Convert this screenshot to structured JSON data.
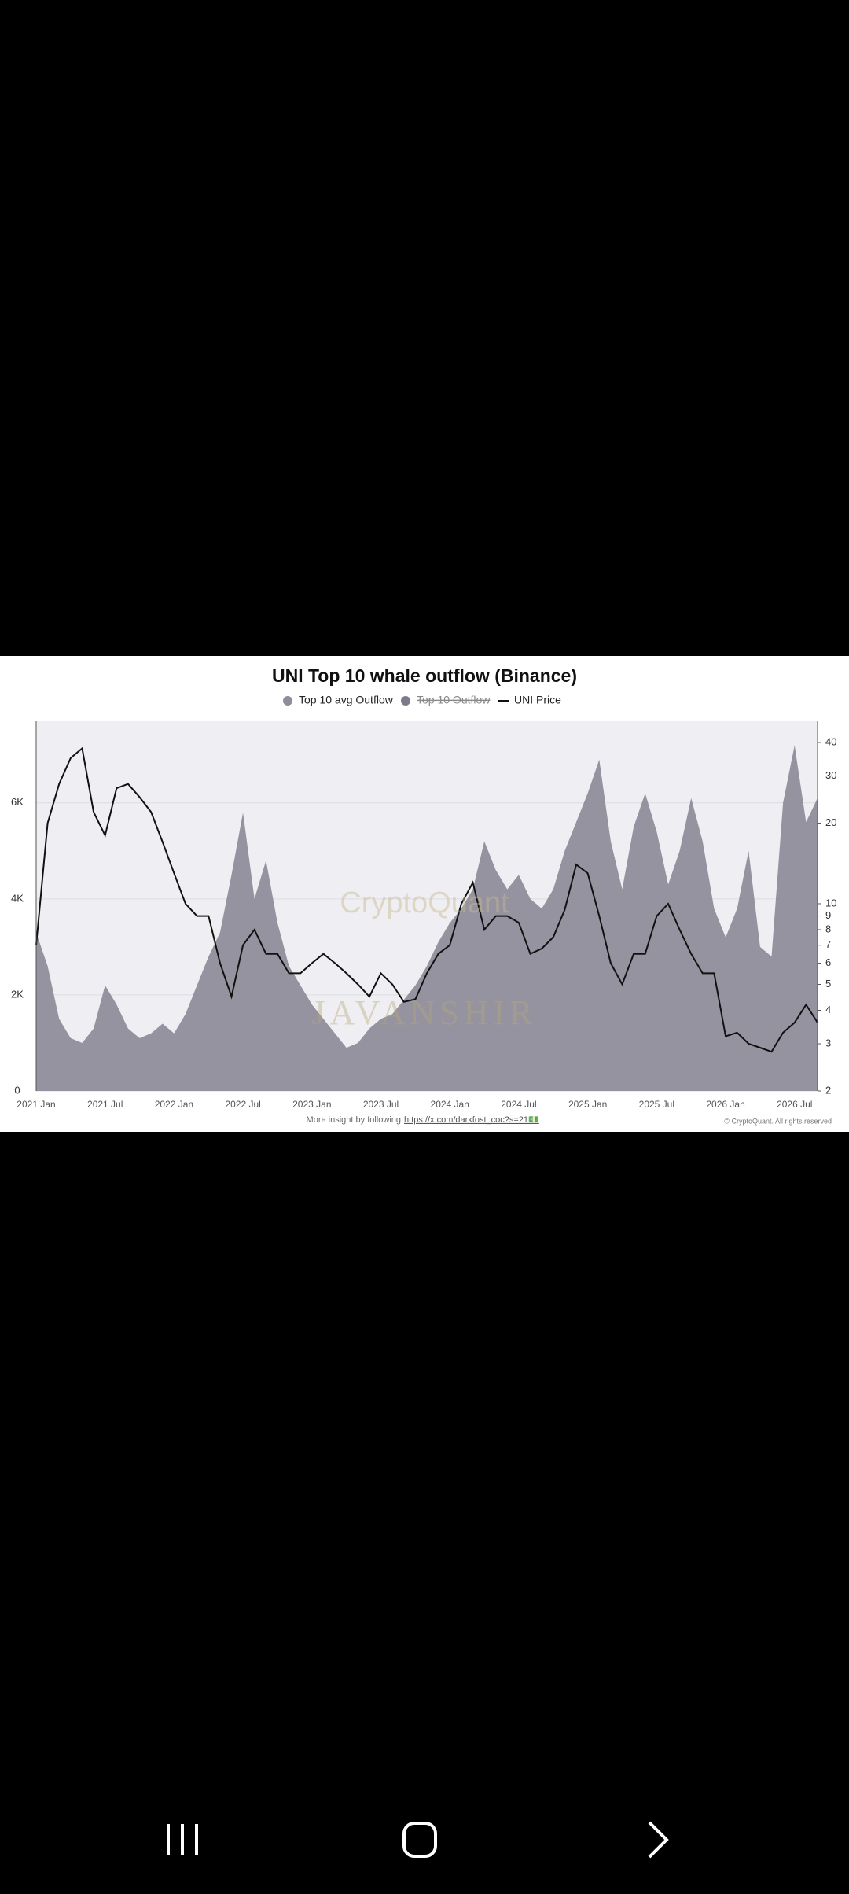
{
  "chart_data": {
    "type": "area-line",
    "title": "UNI Top 10 whale outflow (Binance)",
    "categories": [
      "2021 Jan",
      null,
      null,
      null,
      null,
      null,
      "2021 Jul",
      null,
      null,
      null,
      null,
      null,
      "2022 Jan",
      null,
      null,
      null,
      null,
      null,
      "2022 Jul",
      null,
      null,
      null,
      null,
      null,
      "2023 Jan",
      null,
      null,
      null,
      null,
      null,
      "2023 Jul",
      null,
      null,
      null,
      null,
      null,
      "2024 Jan",
      null,
      null,
      null,
      null,
      null,
      "2024 Jul",
      null,
      null,
      null,
      null,
      null,
      "2025 Jan",
      null,
      null,
      null,
      null,
      null,
      "2025 Jul",
      null,
      null,
      null,
      null,
      null,
      "2026 Jan",
      null,
      null,
      null,
      null,
      null,
      "2026 Jul",
      null,
      null
    ],
    "series": [
      {
        "name": "Top 10 avg Outflow",
        "color": "#8e8d9a",
        "values": [
          3300,
          2600,
          1500,
          1100,
          1000,
          1300,
          2200,
          1800,
          1300,
          1100,
          1200,
          1400,
          1200,
          1600,
          2200,
          2800,
          3300,
          4500,
          5800,
          4000,
          4800,
          3500,
          2600,
          2200,
          1800,
          1500,
          1200,
          900,
          1000,
          1300,
          1500,
          1600,
          1900,
          2200,
          2600,
          3100,
          3500,
          3800,
          4200,
          5200,
          4600,
          4200,
          4500,
          4000,
          3800,
          4200,
          5000,
          5600,
          6200,
          6900,
          5200,
          4200,
          5500,
          6200,
          5400,
          4300,
          5000,
          6100,
          5200,
          3800,
          3200,
          3800,
          5000,
          3000,
          2800,
          6000,
          7200,
          5600,
          6100
        ]
      },
      {
        "name": "UNI Price",
        "color": "#111111",
        "axis": "y2",
        "values": [
          7,
          20,
          28,
          35,
          38,
          22,
          18,
          27,
          28,
          25,
          22,
          17,
          13,
          10,
          9,
          9,
          6,
          4.5,
          7,
          8,
          6.5,
          6.5,
          5.5,
          5.5,
          6,
          6.5,
          6,
          5.5,
          5,
          4.5,
          5.5,
          5,
          4.3,
          4.4,
          5.5,
          6.5,
          7,
          10,
          12,
          8,
          9,
          9,
          8.5,
          6.5,
          6.8,
          7.5,
          9.5,
          14,
          13,
          9,
          6,
          5,
          6.5,
          6.5,
          9,
          10,
          8,
          6.5,
          5.5,
          5.5,
          3.2,
          3.3,
          3,
          2.9,
          2.8,
          3.3,
          3.6,
          4.2,
          3.6
        ]
      }
    ],
    "hidden_series": [
      {
        "name": "Top 10 Outflow",
        "color": "#7b7b8a"
      }
    ],
    "ylim": [
      0,
      7700
    ],
    "yticks": [
      0,
      {
        "value": 2000,
        "label": "2K"
      },
      {
        "value": 4000,
        "label": "4K"
      },
      {
        "value": 6000,
        "label": "6K"
      }
    ],
    "y2lim": [
      2,
      48
    ],
    "y2log": true,
    "y2ticks": [
      2,
      3,
      4,
      5,
      6,
      7,
      8,
      9,
      10,
      20,
      30,
      40
    ],
    "grid": true,
    "watermarks": [
      "CryptoQuant",
      "JAVANSHIR"
    ],
    "footer_note": "More insight by following",
    "footer_link": "https://x.com/darkfost_coc?s=21💵",
    "copyright": "© CryptoQuant. All rights reserved"
  }
}
